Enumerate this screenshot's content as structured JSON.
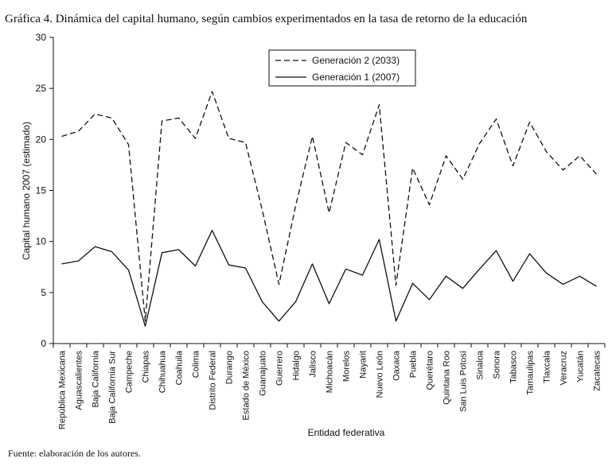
{
  "header": {
    "title": "Gráfica 4. Dinámica del capital humano, según cambios experimentados en la tasa de retorno de la educación"
  },
  "footer": {
    "source": "Fuente: elaboración de los autores."
  },
  "chart_data": {
    "type": "line",
    "xlabel": "Entidad federativa",
    "ylabel": "Capital humano 2007 (estimado)",
    "ylim": [
      0,
      30
    ],
    "yticks": [
      0,
      5,
      10,
      15,
      20,
      25,
      30
    ],
    "grid": false,
    "legend_position": "top-center",
    "categories": [
      "República Mexicana",
      "Aguascalientes",
      "Baja California",
      "Baja California Sur",
      "Campeche",
      "Chiapas",
      "Chihuahua",
      "Coahuila",
      "Colima",
      "Distrito Federal",
      "Durango",
      "Estado de México",
      "Guanajuato",
      "Guerrero",
      "Hidalgo",
      "Jalisco",
      "Michoacán",
      "Morelos",
      "Nayarit",
      "Nuevo León",
      "Oaxaca",
      "Puebla",
      "Querétaro",
      "Quintana Roo",
      "San Luis Potosí",
      "Sinaloa",
      "Sonora",
      "Tabasco",
      "Tamaulipas",
      "Tlaxcala",
      "Veracruz",
      "Yucatán",
      "Zacatecas"
    ],
    "series": [
      {
        "name": "Generación 2 (2033)",
        "style": "dashed",
        "color": "#111111",
        "values": [
          20.3,
          20.8,
          22.5,
          22.1,
          19.5,
          2.2,
          21.8,
          22.1,
          20.1,
          24.7,
          20.1,
          19.7,
          13.1,
          5.8,
          13.5,
          20.3,
          12.8,
          19.7,
          18.5,
          23.4,
          5.7,
          17.2,
          13.6,
          18.4,
          16.1,
          19.6,
          22.0,
          17.4,
          21.7,
          18.8,
          17.0,
          18.4,
          16.6
        ]
      },
      {
        "name": "Generación 1 (2007)",
        "style": "solid",
        "color": "#111111",
        "values": [
          7.8,
          8.1,
          9.5,
          9.0,
          7.2,
          1.7,
          8.9,
          9.2,
          7.6,
          11.1,
          7.7,
          7.4,
          4.1,
          2.2,
          4.1,
          7.8,
          3.9,
          7.3,
          6.7,
          10.2,
          2.2,
          5.9,
          4.3,
          6.6,
          5.4,
          7.3,
          9.1,
          6.1,
          8.8,
          6.9,
          5.8,
          6.6,
          5.6
        ]
      }
    ]
  }
}
